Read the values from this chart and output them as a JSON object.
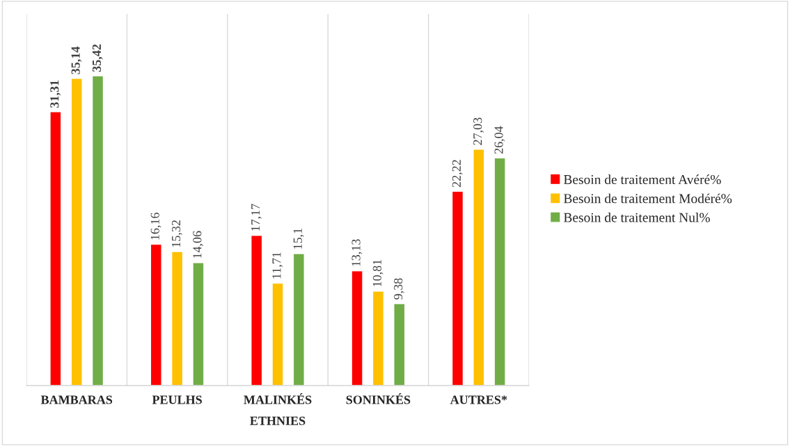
{
  "chart_data": {
    "type": "bar",
    "xlabel": "ETHNIES",
    "categories": [
      "BAMBARAS",
      "PEULHS",
      "MALINKÉS",
      "SONINKÉS",
      "AUTRES*"
    ],
    "series": [
      {
        "name": "Besoin de traitement Avéré%",
        "color": "#ff0000",
        "values": [
          31.31,
          16.16,
          17.17,
          13.13,
          22.22
        ],
        "value_labels": [
          "31,31",
          "16,16",
          "17,17",
          "13,13",
          "22,22"
        ]
      },
      {
        "name": "Besoin de traitement Modéré%",
        "color": "#ffc000",
        "values": [
          35.14,
          15.32,
          11.71,
          10.81,
          27.03
        ],
        "value_labels": [
          "35,14",
          "15,32",
          "11,71",
          "10,81",
          "27,03"
        ]
      },
      {
        "name": "Besoin de traitement Nul%",
        "color": "#70ad47",
        "values": [
          35.42,
          14.06,
          15.1,
          9.38,
          26.04
        ],
        "value_labels": [
          "35,42",
          "14,06",
          "15,1",
          "9,38",
          "26,04"
        ]
      }
    ],
    "grid": "x",
    "legend": "right",
    "tick_labels": "x"
  }
}
